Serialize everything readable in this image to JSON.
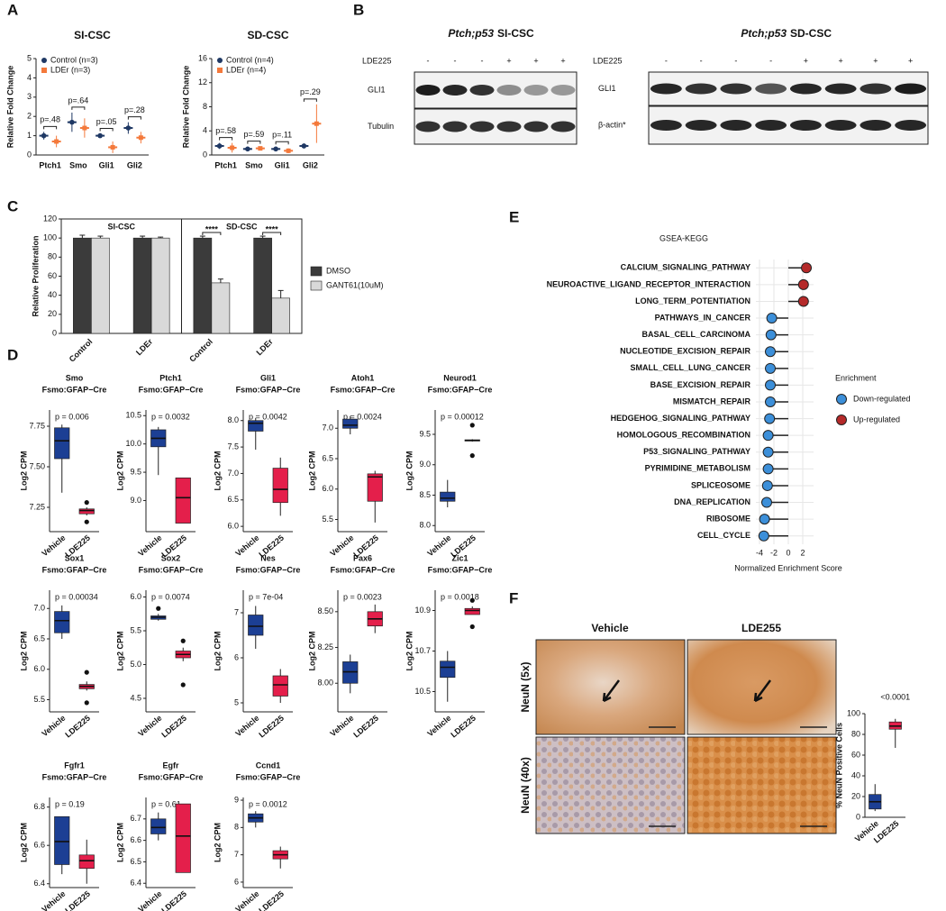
{
  "panel_labels": [
    "A",
    "B",
    "C",
    "D",
    "E",
    "F"
  ],
  "chart_data": [
    {
      "type": "errorbar",
      "title": "SI-CSC",
      "ylabel": "Relative Fold Change",
      "categories": [
        "Ptch1",
        "Smo",
        "Gli1",
        "Gli2"
      ],
      "series": [
        {
          "name": "Control (n=3)",
          "color": "#1f3864",
          "values": [
            1.0,
            1.7,
            1.0,
            1.4
          ],
          "errors": [
            0.2,
            0.5,
            0.1,
            0.3
          ]
        },
        {
          "name": "LDEr (n=3)",
          "color": "#f4793b",
          "values": [
            0.7,
            1.4,
            0.4,
            0.9
          ],
          "errors": [
            0.3,
            0.5,
            0.3,
            0.3
          ]
        }
      ],
      "annotations": [
        "p=.48",
        "p=.64",
        "p=.05",
        "p=.28"
      ],
      "ylim": [
        0,
        5
      ],
      "yticks": [
        0,
        1,
        2,
        3,
        4,
        5
      ]
    },
    {
      "type": "errorbar",
      "title": "SD-CSC",
      "ylabel": "Relative Fold Change",
      "categories": [
        "Ptch1",
        "Smo",
        "Gli1",
        "Gli2"
      ],
      "series": [
        {
          "name": "Control (n=4)",
          "color": "#1f3864",
          "values": [
            1.5,
            1.0,
            1.0,
            1.5
          ],
          "errors": [
            0.5,
            0.2,
            0.3,
            0.4
          ]
        },
        {
          "name": "LDEr (n=4)",
          "color": "#f4793b",
          "values": [
            1.2,
            1.1,
            0.7,
            5.2
          ],
          "errors": [
            0.8,
            0.3,
            0.4,
            3.2
          ]
        }
      ],
      "annotations": [
        "p=.58",
        "p=.59",
        "p=.11",
        "p=.29"
      ],
      "ylim": [
        0,
        16
      ],
      "yticks": [
        0,
        4,
        8,
        12,
        16
      ]
    },
    {
      "type": "bar",
      "ylabel": "Relative Proliferation",
      "groups": [
        "SI-CSC",
        "SD-CSC"
      ],
      "categories": [
        "Control",
        "LDEr",
        "Control",
        "LDEr"
      ],
      "series": [
        {
          "name": "DMSO",
          "color": "#3b3b3b",
          "values": [
            100,
            100,
            100,
            100
          ],
          "errors": [
            3,
            2,
            2,
            2
          ]
        },
        {
          "name": "GANT61(10uM)",
          "color": "#d9d9d9",
          "values": [
            100,
            100,
            53,
            37
          ],
          "errors": [
            2,
            1,
            4,
            8
          ]
        }
      ],
      "annotations": [
        null,
        null,
        "****",
        "****"
      ],
      "ylim": [
        0,
        120
      ],
      "yticks": [
        0,
        20,
        40,
        60,
        80,
        100,
        120
      ]
    },
    {
      "type": "lollipop",
      "title": "GSEA-KEGG",
      "xlabel": "Normalized Enrichment Score",
      "legend_title": "Enrichment",
      "categories": [
        "CALCIUM_SIGNALING_PATHWAY",
        "NEUROACTIVE_LIGAND_RECEPTOR_INTERACTION",
        "LONG_TERM_POTENTIATION",
        "PATHWAYS_IN_CANCER",
        "BASAL_CELL_CARCINOMA",
        "NUCLEOTIDE_EXCISION_REPAIR",
        "SMALL_CELL_LUNG_CANCER",
        "BASE_EXCISION_REPAIR",
        "MISMATCH_REPAIR",
        "HEDGEHOG_SIGNALING_PATHWAY",
        "HOMOLOGOUS_RECOMBINATION",
        "P53_SIGNALING_PATHWAY",
        "PYRIMIDINE_METABOLISM",
        "SPLICEOSOME",
        "DNA_REPLICATION",
        "RIBOSOME",
        "CELL_CYCLE"
      ],
      "series": [
        {
          "name": "Down-regulated",
          "color": "#3c8fd9",
          "values": [
            null,
            null,
            null,
            -2.3,
            -2.4,
            -2.5,
            -2.5,
            -2.5,
            -2.5,
            -2.6,
            -2.8,
            -2.8,
            -2.8,
            -2.9,
            -3.0,
            -3.3,
            -3.4
          ]
        },
        {
          "name": "Up-regulated",
          "color": "#b52a2a",
          "values": [
            2.5,
            2.1,
            2.1,
            null,
            null,
            null,
            null,
            null,
            null,
            null,
            null,
            null,
            null,
            null,
            null,
            null,
            null
          ]
        }
      ],
      "xlim": [
        -4.5,
        3.5
      ],
      "xticks": [
        -4,
        -2,
        0,
        2
      ],
      "grid": true
    },
    {
      "type": "box",
      "title": "Smo",
      "subtitle": "Fsmo:GFAP−Cre",
      "annotation": "p = 0.006",
      "ylabel": "Log2 CPM",
      "categories": [
        "Vehicle",
        "LDE225"
      ],
      "colors": [
        "#1c3f94",
        "#e41f4b"
      ],
      "boxes": [
        {
          "min": 7.34,
          "q1": 7.55,
          "median": 7.66,
          "q3": 7.74,
          "max": 7.76,
          "outliers": []
        },
        {
          "min": 7.2,
          "q1": 7.21,
          "median": 7.23,
          "q3": 7.24,
          "max": 7.25,
          "outliers": [
            7.28,
            7.16
          ]
        }
      ],
      "ylim": [
        7.1,
        7.85
      ],
      "yticks": [
        7.25,
        {
          "value": 7.5,
          "label": "7.50"
        },
        7.75
      ]
    },
    {
      "type": "box",
      "title": "Ptch1",
      "subtitle": "Fsmo:GFAP−Cre",
      "annotation": "p = 0.0032",
      "ylabel": "Log2 CPM",
      "categories": [
        "Vehicle",
        "LDE225"
      ],
      "colors": [
        "#1c3f94",
        "#e41f4b"
      ],
      "boxes": [
        {
          "min": 9.45,
          "q1": 9.95,
          "median": 10.1,
          "q3": 10.25,
          "max": 10.3,
          "outliers": []
        },
        {
          "min": 8.6,
          "q1": 8.6,
          "median": 9.05,
          "q3": 9.4,
          "max": 9.4,
          "outliers": []
        }
      ],
      "ylim": [
        8.45,
        10.6
      ],
      "yticks": [
        {
          "value": 9,
          "label": "9.0"
        },
        9.5,
        {
          "value": 10,
          "label": "10.0"
        },
        10.5
      ]
    },
    {
      "type": "box",
      "title": "Gli1",
      "subtitle": "Fsmo:GFAP−Cre",
      "annotation": "p = 0.0042",
      "ylabel": "Log2 CPM",
      "categories": [
        "Vehicle",
        "LDE225"
      ],
      "colors": [
        "#1c3f94",
        "#e41f4b"
      ],
      "boxes": [
        {
          "min": 7.45,
          "q1": 7.8,
          "median": 7.95,
          "q3": 8.0,
          "max": 8.05,
          "outliers": []
        },
        {
          "min": 6.2,
          "q1": 6.45,
          "median": 6.7,
          "q3": 7.1,
          "max": 7.3,
          "outliers": []
        }
      ],
      "ylim": [
        5.9,
        8.2
      ],
      "yticks": [
        {
          "value": 6,
          "label": "6.0"
        },
        6.5,
        {
          "value": 7,
          "label": "7.0"
        },
        7.5,
        {
          "value": 8,
          "label": "8.0"
        }
      ]
    },
    {
      "type": "box",
      "title": "Atoh1",
      "subtitle": "Fsmo:GFAP−Cre",
      "annotation": "p = 0.0024",
      "ylabel": "Log2 CPM",
      "categories": [
        "Vehicle",
        "LDE225"
      ],
      "colors": [
        "#1c3f94",
        "#e41f4b"
      ],
      "boxes": [
        {
          "min": 6.9,
          "q1": 7.0,
          "median": 7.05,
          "q3": 7.15,
          "max": 7.2,
          "outliers": []
        },
        {
          "min": 5.45,
          "q1": 5.8,
          "median": 6.2,
          "q3": 6.25,
          "max": 6.3,
          "outliers": []
        }
      ],
      "ylim": [
        5.3,
        7.3
      ],
      "yticks": [
        5.5,
        {
          "value": 6,
          "label": "6.0"
        },
        6.5,
        {
          "value": 7,
          "label": "7.0"
        }
      ]
    },
    {
      "type": "box",
      "title": "Neurod1",
      "subtitle": "Fsmo:GFAP−Cre",
      "annotation": "p = 0.00012",
      "ylabel": "Log2 CPM",
      "categories": [
        "Vehicle",
        "LDE225"
      ],
      "colors": [
        "#1c3f94",
        "#e41f4b"
      ],
      "boxes": [
        {
          "min": 8.3,
          "q1": 8.4,
          "median": 8.45,
          "q3": 8.55,
          "max": 8.75,
          "outliers": []
        },
        {
          "min": 9.38,
          "q1": 9.39,
          "median": 9.4,
          "q3": 9.41,
          "max": 9.42,
          "outliers": [
            9.65,
            9.15
          ]
        }
      ],
      "ylim": [
        7.9,
        9.9
      ],
      "yticks": [
        {
          "value": 8,
          "label": "8.0"
        },
        8.5,
        {
          "value": 9,
          "label": "9.0"
        },
        9.5
      ]
    },
    {
      "type": "box",
      "title": "Sox1",
      "subtitle": "Fsmo:GFAP−Cre",
      "annotation": "p = 0.00034",
      "ylabel": "Log2 CPM",
      "categories": [
        "Vehicle",
        "LDE225"
      ],
      "colors": [
        "#1c3f94",
        "#e41f4b"
      ],
      "boxes": [
        {
          "min": 6.5,
          "q1": 6.6,
          "median": 6.8,
          "q3": 6.95,
          "max": 7.05,
          "outliers": []
        },
        {
          "min": 5.65,
          "q1": 5.68,
          "median": 5.72,
          "q3": 5.75,
          "max": 5.8,
          "outliers": [
            5.95,
            5.45
          ]
        }
      ],
      "ylim": [
        5.3,
        7.3
      ],
      "yticks": [
        5.5,
        {
          "value": 6,
          "label": "6.0"
        },
        6.5,
        {
          "value": 7,
          "label": "7.0"
        }
      ]
    },
    {
      "type": "box",
      "title": "Sox2",
      "subtitle": "Fsmo:GFAP−Cre",
      "annotation": "p = 0.0074",
      "ylabel": "Log2 CPM",
      "categories": [
        "Vehicle",
        "LDE225"
      ],
      "colors": [
        "#1c3f94",
        "#e41f4b"
      ],
      "boxes": [
        {
          "min": 5.65,
          "q1": 5.67,
          "median": 5.7,
          "q3": 5.72,
          "max": 5.75,
          "outliers": [
            5.83
          ]
        },
        {
          "min": 5.05,
          "q1": 5.1,
          "median": 5.15,
          "q3": 5.2,
          "max": 5.25,
          "outliers": [
            5.35,
            4.7
          ]
        }
      ],
      "ylim": [
        4.3,
        6.1
      ],
      "yticks": [
        4.5,
        {
          "value": 5,
          "label": "5.0"
        },
        5.5,
        {
          "value": 6,
          "label": "6.0"
        }
      ]
    },
    {
      "type": "box",
      "title": "Nes",
      "subtitle": "Fsmo:GFAP−Cre",
      "annotation": "p = 7e-04",
      "ylabel": "Log2 CPM",
      "categories": [
        "Vehicle",
        "LDE225"
      ],
      "colors": [
        "#1c3f94",
        "#e41f4b"
      ],
      "boxes": [
        {
          "min": 6.2,
          "q1": 6.5,
          "median": 6.7,
          "q3": 6.95,
          "max": 7.15,
          "outliers": []
        },
        {
          "min": 5.0,
          "q1": 5.15,
          "median": 5.4,
          "q3": 5.6,
          "max": 5.75,
          "outliers": []
        }
      ],
      "ylim": [
        4.8,
        7.5
      ],
      "yticks": [
        5,
        6,
        7
      ]
    },
    {
      "type": "box",
      "title": "Pax6",
      "subtitle": "Fsmo:GFAP−Cre",
      "annotation": "p = 0.0023",
      "ylabel": "Log2 CPM",
      "categories": [
        "Vehicle",
        "LDE225"
      ],
      "colors": [
        "#1c3f94",
        "#e41f4b"
      ],
      "boxes": [
        {
          "min": 7.93,
          "q1": 8.0,
          "median": 8.08,
          "q3": 8.15,
          "max": 8.2,
          "outliers": []
        },
        {
          "min": 8.35,
          "q1": 8.4,
          "median": 8.45,
          "q3": 8.5,
          "max": 8.55,
          "outliers": []
        }
      ],
      "ylim": [
        7.8,
        8.65
      ],
      "yticks": [
        {
          "value": 8,
          "label": "8.00"
        },
        8.25,
        {
          "value": 8.5,
          "label": "8.50"
        }
      ]
    },
    {
      "type": "box",
      "title": "Zic1",
      "subtitle": "Fsmo:GFAP−Cre",
      "annotation": "p = 0.0018",
      "ylabel": "Log2 CPM",
      "categories": [
        "Vehicle",
        "LDE225"
      ],
      "colors": [
        "#1c3f94",
        "#e41f4b"
      ],
      "boxes": [
        {
          "min": 10.45,
          "q1": 10.57,
          "median": 10.62,
          "q3": 10.65,
          "max": 10.7,
          "outliers": []
        },
        {
          "min": 10.88,
          "q1": 10.88,
          "median": 10.9,
          "q3": 10.91,
          "max": 10.92,
          "outliers": [
            10.95,
            10.82
          ]
        }
      ],
      "ylim": [
        10.4,
        11.0
      ],
      "yticks": [
        10.5,
        10.7,
        10.9
      ]
    },
    {
      "type": "box",
      "title": "Fgfr1",
      "subtitle": "Fsmo:GFAP−Cre",
      "annotation": "p = 0.19",
      "ylabel": "Log2 CPM",
      "categories": [
        "Vehicle",
        "LDE225"
      ],
      "colors": [
        "#1c3f94",
        "#e41f4b"
      ],
      "boxes": [
        {
          "min": 6.45,
          "q1": 6.5,
          "median": 6.62,
          "q3": 6.75,
          "max": 6.75,
          "outliers": []
        },
        {
          "min": 6.4,
          "q1": 6.48,
          "median": 6.52,
          "q3": 6.55,
          "max": 6.63,
          "outliers": []
        }
      ],
      "ylim": [
        6.38,
        6.85
      ],
      "yticks": [
        6.4,
        6.6,
        6.8
      ]
    },
    {
      "type": "box",
      "title": "Egfr",
      "subtitle": "Fsmo:GFAP−Cre",
      "annotation": "p = 0.61",
      "ylabel": "Log2 CPM",
      "categories": [
        "Vehicle",
        "LDE225"
      ],
      "colors": [
        "#1c3f94",
        "#e41f4b"
      ],
      "boxes": [
        {
          "min": 6.6,
          "q1": 6.63,
          "median": 6.66,
          "q3": 6.7,
          "max": 6.73,
          "outliers": []
        },
        {
          "min": 6.45,
          "q1": 6.45,
          "median": 6.62,
          "q3": 6.77,
          "max": 6.77,
          "outliers": []
        }
      ],
      "ylim": [
        6.38,
        6.8
      ],
      "yticks": [
        6.4,
        6.5,
        6.6,
        6.7
      ]
    },
    {
      "type": "box",
      "title": "Ccnd1",
      "subtitle": "Fsmo:GFAP−Cre",
      "annotation": "p = 0.0012",
      "ylabel": "Log2 CPM",
      "categories": [
        "Vehicle",
        "LDE225"
      ],
      "colors": [
        "#1c3f94",
        "#e41f4b"
      ],
      "boxes": [
        {
          "min": 8.0,
          "q1": 8.2,
          "median": 8.35,
          "q3": 8.5,
          "max": 8.6,
          "outliers": []
        },
        {
          "min": 6.5,
          "q1": 6.85,
          "median": 7.0,
          "q3": 7.15,
          "max": 7.3,
          "outliers": []
        }
      ],
      "ylim": [
        5.8,
        9.1
      ],
      "yticks": [
        6,
        7,
        8,
        9
      ]
    },
    {
      "type": "box",
      "annotation": "<0.0001",
      "ylabel": "% NeuN Positive Cells",
      "categories": [
        "Vehicle",
        "LDE225"
      ],
      "colors": [
        "#1c3f94",
        "#e41f4b"
      ],
      "boxes": [
        {
          "min": 6,
          "q1": 8,
          "median": 15,
          "q3": 22,
          "max": 32,
          "outliers": []
        },
        {
          "min": 67,
          "q1": 85,
          "median": 88,
          "q3": 92,
          "max": 95,
          "outliers": []
        }
      ],
      "ylim": [
        0,
        100
      ],
      "yticks": [
        0,
        20,
        40,
        60,
        80,
        100
      ]
    }
  ],
  "blots": [
    {
      "title_italic": "Ptch;p53",
      "title": "SI-CSC",
      "treatment": "LDE225",
      "signs": [
        "-",
        "-",
        "-",
        "+",
        "+",
        "+"
      ],
      "rows": [
        "GLI1",
        "Tubulin"
      ]
    },
    {
      "title_italic": "Ptch;p53",
      "title": "SD-CSC",
      "treatment": "LDE225",
      "signs": [
        "-",
        "-",
        "-",
        "-",
        "+",
        "+",
        "+",
        "+"
      ],
      "rows": [
        "GLI1",
        "β-actin*"
      ]
    }
  ],
  "images": {
    "columns": [
      "Vehicle",
      "LDE255"
    ],
    "rows": [
      "NeuN (5x)",
      "NeuN (40x)"
    ]
  }
}
